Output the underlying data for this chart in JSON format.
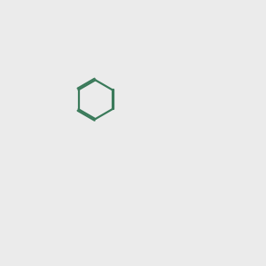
{
  "background_color": "#ebebeb",
  "bond_color": "#3a7a5a",
  "bond_width": 1.6,
  "atom_colors": {
    "O": "#dd0000",
    "N": "#0000cc",
    "H": "#708090",
    "C": "#3a7a5a"
  },
  "font_size": 8.5,
  "fig_size": [
    3.0,
    3.0
  ],
  "dpi": 100,
  "xlim": [
    0,
    10
  ],
  "ylim": [
    0,
    10
  ]
}
